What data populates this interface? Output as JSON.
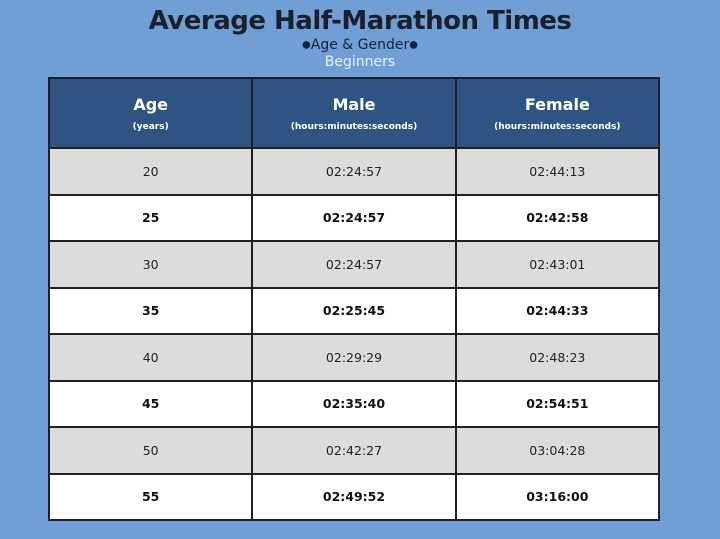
{
  "title": "Average Half-Marathon Times",
  "subtitle": {
    "bullet_left": "●",
    "text": "Age & Gender",
    "bullet_right": "●"
  },
  "level": "Beginners",
  "colors": {
    "background": "#6f9fd5",
    "header_fill": "#2f5382",
    "shaded_row": "#dcdcdc",
    "white_row": "#ffffff"
  },
  "table": {
    "columns": [
      {
        "label": "Age",
        "unit": "(years)"
      },
      {
        "label": "Male",
        "unit": "(hours:minutes:seconds)"
      },
      {
        "label": "Female",
        "unit": "(hours:minutes:seconds)"
      }
    ],
    "rows": [
      {
        "age": "20",
        "male": "02:24:57",
        "female": "02:44:13",
        "style": "shaded"
      },
      {
        "age": "25",
        "male": "02:24:57",
        "female": "02:42:58",
        "style": "bold"
      },
      {
        "age": "30",
        "male": "02:24:57",
        "female": "02:43:01",
        "style": "shaded"
      },
      {
        "age": "35",
        "male": "02:25:45",
        "female": "02:44:33",
        "style": "bold"
      },
      {
        "age": "40",
        "male": "02:29:29",
        "female": "02:48:23",
        "style": "shaded"
      },
      {
        "age": "45",
        "male": "02:35:40",
        "female": "02:54:51",
        "style": "bold"
      },
      {
        "age": "50",
        "male": "02:42:27",
        "female": "03:04:28",
        "style": "shaded"
      },
      {
        "age": "55",
        "male": "02:49:52",
        "female": "03:16:00",
        "style": "bold"
      }
    ]
  }
}
